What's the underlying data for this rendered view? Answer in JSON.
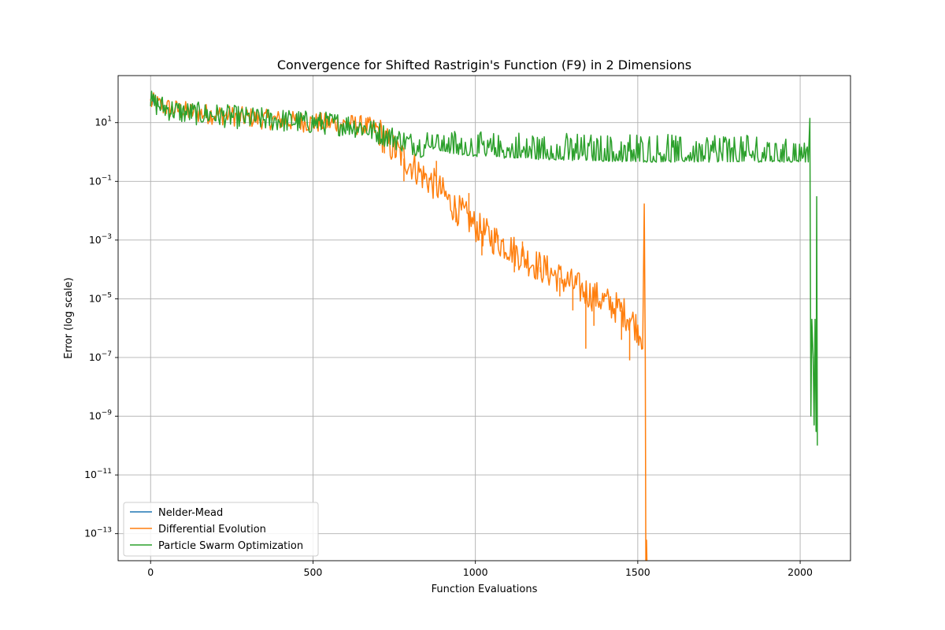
{
  "chart_data": {
    "type": "line",
    "title": "Convergence for Shifted Rastrigin's Function (F9) in 2 Dimensions",
    "xlabel": "Function Evaluations",
    "ylabel": "Error (log scale)",
    "xlim": [
      -100,
      2155
    ],
    "ylim": [
      1.2e-14,
      400
    ],
    "yscale": "log",
    "grid": true,
    "legend_position": "lower-left",
    "x_ticks": [
      {
        "value": 0,
        "label": "0"
      },
      {
        "value": 500,
        "label": "500"
      },
      {
        "value": 1000,
        "label": "1000"
      },
      {
        "value": 1500,
        "label": "1500"
      },
      {
        "value": 2000,
        "label": "2000"
      }
    ],
    "y_ticks": [
      {
        "value": 1e-13,
        "base": "10",
        "exp": "−13"
      },
      {
        "value": 1e-11,
        "base": "10",
        "exp": "−11"
      },
      {
        "value": 1e-09,
        "base": "10",
        "exp": "−9"
      },
      {
        "value": 1e-07,
        "base": "10",
        "exp": "−7"
      },
      {
        "value": 1e-05,
        "base": "10",
        "exp": "−5"
      },
      {
        "value": 0.001,
        "base": "10",
        "exp": "−3"
      },
      {
        "value": 0.1,
        "base": "10",
        "exp": "−1"
      },
      {
        "value": 10,
        "base": "10",
        "exp": "1"
      }
    ],
    "series": [
      {
        "name": "Nelder-Mead",
        "color": "#1f77b4",
        "x": [
          0,
          2,
          5,
          8,
          12
        ],
        "y": [
          45,
          52,
          40,
          60,
          48
        ]
      },
      {
        "name": "Differential Evolution",
        "color": "#ff7f0e",
        "x": [
          0,
          50,
          100,
          150,
          200,
          250,
          300,
          350,
          400,
          450,
          500,
          550,
          600,
          650,
          700,
          720,
          740,
          760,
          780,
          800,
          820,
          840,
          860,
          880,
          900,
          920,
          940,
          960,
          980,
          1000,
          1050,
          1100,
          1150,
          1200,
          1250,
          1300,
          1350,
          1400,
          1450,
          1480,
          1500,
          1515,
          1520,
          1523,
          1525,
          1527,
          1530
        ],
        "y": [
          50,
          32,
          25,
          21,
          19,
          17,
          15,
          13,
          12,
          11,
          10,
          9.5,
          9,
          8,
          6,
          2.5,
          1.5,
          1.0,
          0.6,
          0.4,
          0.25,
          0.15,
          0.1,
          0.07,
          0.04,
          0.02,
          0.012,
          0.008,
          0.005,
          0.003,
          0.0012,
          0.0006,
          0.00025,
          0.00012,
          6e-05,
          3e-05,
          1.5e-05,
          8e-06,
          4e-06,
          2e-06,
          1e-06,
          5e-07,
          0.017,
          1e-07,
          1e-15,
          6e-14,
          1e-15
        ],
        "spikes": [
          {
            "x": 720,
            "y": 0.9
          },
          {
            "x": 780,
            "y": 0.1
          },
          {
            "x": 880,
            "y": 0.5
          },
          {
            "x": 940,
            "y": 0.004
          },
          {
            "x": 980,
            "y": 0.04
          },
          {
            "x": 1020,
            "y": 0.0003
          },
          {
            "x": 1070,
            "y": 0.0015
          },
          {
            "x": 1120,
            "y": 8e-05
          },
          {
            "x": 1145,
            "y": 0.0009
          },
          {
            "x": 1200,
            "y": 8e-05
          },
          {
            "x": 1260,
            "y": 1.2e-05
          },
          {
            "x": 1300,
            "y": 4e-06
          },
          {
            "x": 1340,
            "y": 2e-07
          },
          {
            "x": 1365,
            "y": 1.2e-06
          },
          {
            "x": 1450,
            "y": 4e-07
          },
          {
            "x": 1475,
            "y": 8e-08
          }
        ]
      },
      {
        "name": "Particle Swarm Optimization",
        "color": "#2ca02c",
        "x": [
          0,
          50,
          100,
          150,
          200,
          250,
          300,
          350,
          400,
          450,
          500,
          550,
          600,
          650,
          700,
          750,
          800,
          850,
          900,
          950,
          1000,
          1100,
          1200,
          1300,
          1400,
          1500,
          1600,
          1700,
          1800,
          1900,
          2000,
          2025,
          2030,
          2033,
          2036,
          2040,
          2043,
          2046,
          2049,
          2051,
          2053
        ],
        "y": [
          50,
          30,
          22,
          20,
          18,
          16,
          14,
          13,
          12,
          11,
          10,
          9.5,
          8.5,
          7,
          4.5,
          3,
          2,
          1.5,
          1.0,
          0.8,
          0.7,
          0.6,
          0.55,
          0.5,
          0.48,
          0.45,
          0.45,
          0.45,
          0.45,
          0.45,
          0.45,
          0.45,
          14,
          1e-09,
          2e-06,
          1e-07,
          5e-10,
          2e-06,
          3e-10,
          0.03,
          1e-10
        ],
        "band_high": [
          6,
          5,
          5,
          5,
          4.5,
          4.5,
          4,
          4,
          4,
          4,
          4,
          3.5,
          3,
          3
        ],
        "band_x": [
          850,
          950,
          1050,
          1150,
          1250,
          1350,
          1450,
          1550,
          1650,
          1750,
          1850,
          1900,
          1950,
          2000
        ]
      }
    ]
  }
}
